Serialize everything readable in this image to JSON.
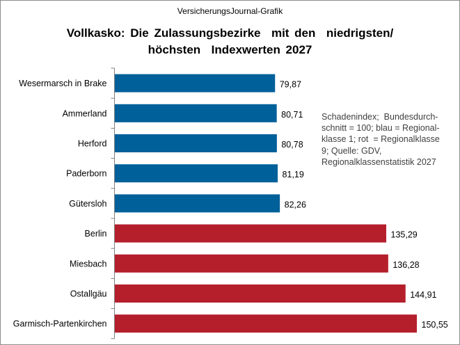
{
  "source_label": "VersicherungsJournal-Grafik",
  "title_lines": [
    "Vollkasko: Die Zulassungsbezirke  mit den  niedrigsten/",
    "höchsten  Indexwerten 2027"
  ],
  "note_lines": [
    "Schadenindex;  Bundesdurch-",
    "schnitt = 100; blau = Regional-",
    "klasse 1; rot  = Regionalklasse",
    "9; Quelle: GDV,",
    "Regionalklassenstatistik 2027"
  ],
  "colors": {
    "blue": "#00609a",
    "red": "#b51f2c"
  },
  "chart_data": {
    "type": "bar",
    "orientation": "horizontal",
    "categories": [
      "Wesermarsch in Brake",
      "Ammerland",
      "Herford",
      "Paderborn",
      "Gütersloh",
      "Berlin",
      "Miesbach",
      "Ostallgäu",
      "Garmisch-Partenkirchen"
    ],
    "values": [
      79.87,
      80.71,
      80.78,
      81.19,
      82.26,
      135.29,
      136.28,
      144.91,
      150.55
    ],
    "value_labels": [
      "79,87",
      "80,71",
      "80,78",
      "81,19",
      "82,26",
      "135,29",
      "136,28",
      "144,91",
      "150,55"
    ],
    "bar_colors": [
      "blue",
      "blue",
      "blue",
      "blue",
      "blue",
      "red",
      "red",
      "red",
      "red"
    ],
    "xlim": [
      0,
      162
    ],
    "grid": false,
    "legend": "none"
  }
}
